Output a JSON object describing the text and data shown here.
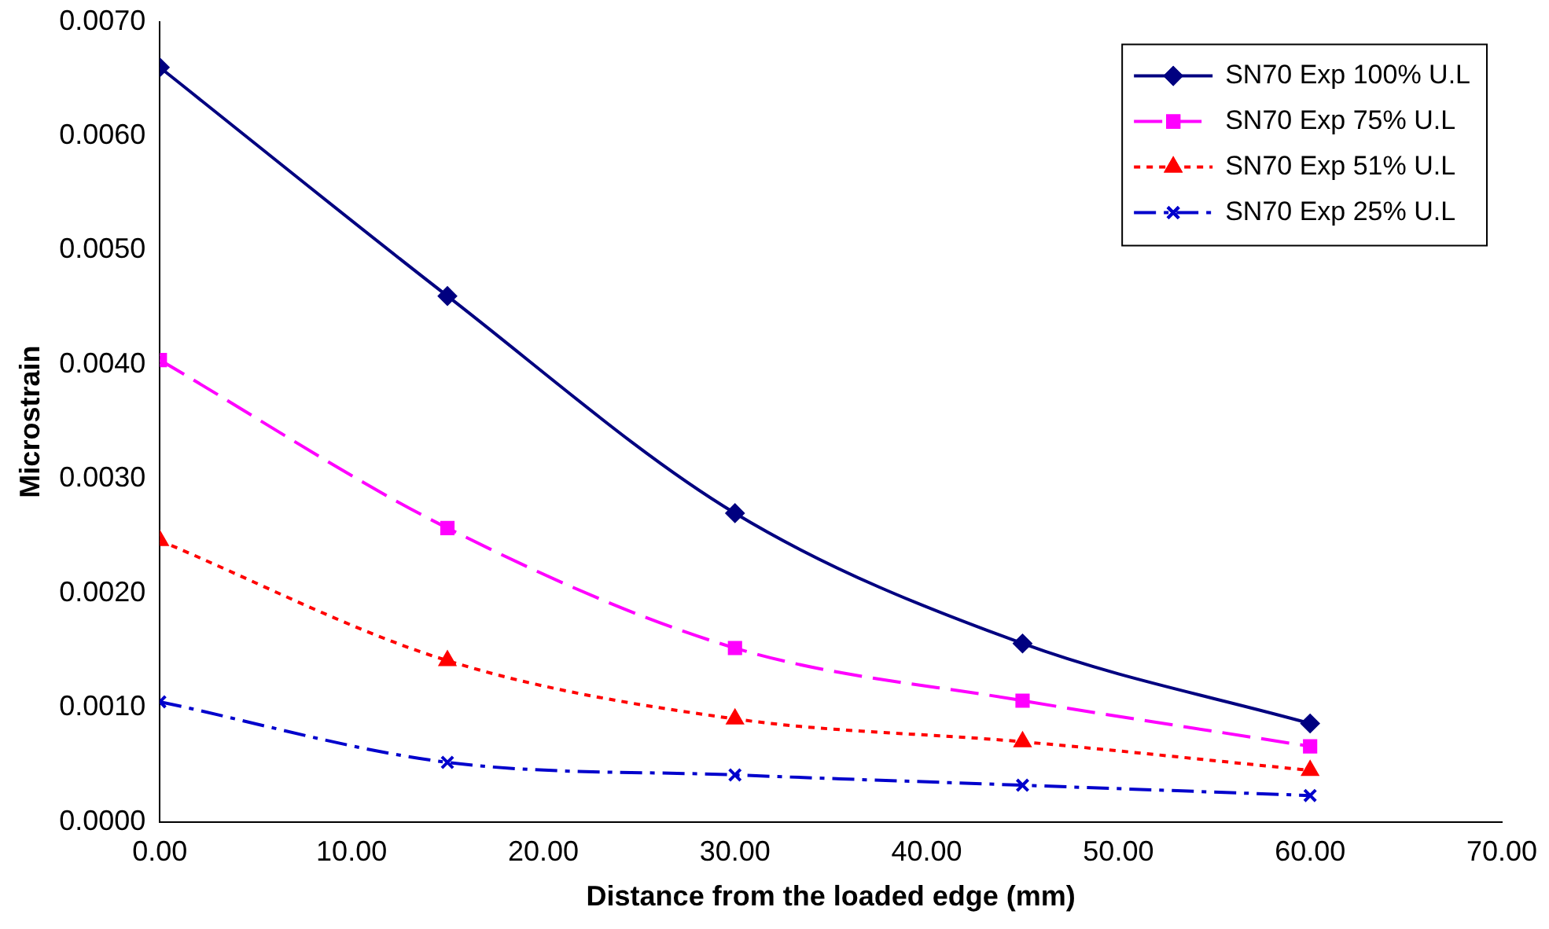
{
  "chart_data": {
    "type": "line",
    "xlabel": "Distance from the loaded edge (mm)",
    "ylabel": "Microstrain",
    "x": [
      0,
      15,
      30,
      45,
      60
    ],
    "series": [
      {
        "name": "SN70 Exp 100% U.L",
        "color": "#000080",
        "marker": "diamond",
        "line_style": "solid",
        "values": [
          0.0066,
          0.0046,
          0.0027,
          0.00156,
          0.00086
        ]
      },
      {
        "name": "SN70 Exp 75% U.L",
        "color": "#ff00ff",
        "marker": "square",
        "line_style": "dashed",
        "values": [
          0.00404,
          0.00257,
          0.00152,
          0.00106,
          0.00066
        ]
      },
      {
        "name": "SN70 Exp 51% U.L",
        "color": "#ff0000",
        "marker": "triangle",
        "line_style": "dotted",
        "values": [
          0.00246,
          0.00141,
          0.0009,
          0.0007,
          0.00045
        ]
      },
      {
        "name": "SN70 Exp 25% U.L",
        "color": "#0000cc",
        "marker": "cross",
        "line_style": "dashdot",
        "values": [
          0.00105,
          0.00052,
          0.00041,
          0.00032,
          0.00023
        ]
      }
    ],
    "xlim": [
      0,
      70
    ],
    "xticks": [
      {
        "value": 0,
        "label": "0.00"
      },
      {
        "value": 10,
        "label": "10.00"
      },
      {
        "value": 20,
        "label": "20.00"
      },
      {
        "value": 30,
        "label": "30.00"
      },
      {
        "value": 40,
        "label": "40.00"
      },
      {
        "value": 50,
        "label": "50.00"
      },
      {
        "value": 60,
        "label": "60.00"
      },
      {
        "value": 70,
        "label": "70.00"
      }
    ],
    "ylim": [
      0,
      0.007
    ],
    "yticks": [
      {
        "value": 0,
        "label": "0.0000"
      },
      {
        "value": 0.001,
        "label": "0.0010"
      },
      {
        "value": 0.002,
        "label": "0.0020"
      },
      {
        "value": 0.003,
        "label": "0.0030"
      },
      {
        "value": 0.004,
        "label": "0.0040"
      },
      {
        "value": 0.005,
        "label": "0.0050"
      },
      {
        "value": 0.006,
        "label": "0.0060"
      },
      {
        "value": 0.007,
        "label": "0.0070"
      }
    ],
    "grid": false,
    "legend": "top right"
  }
}
